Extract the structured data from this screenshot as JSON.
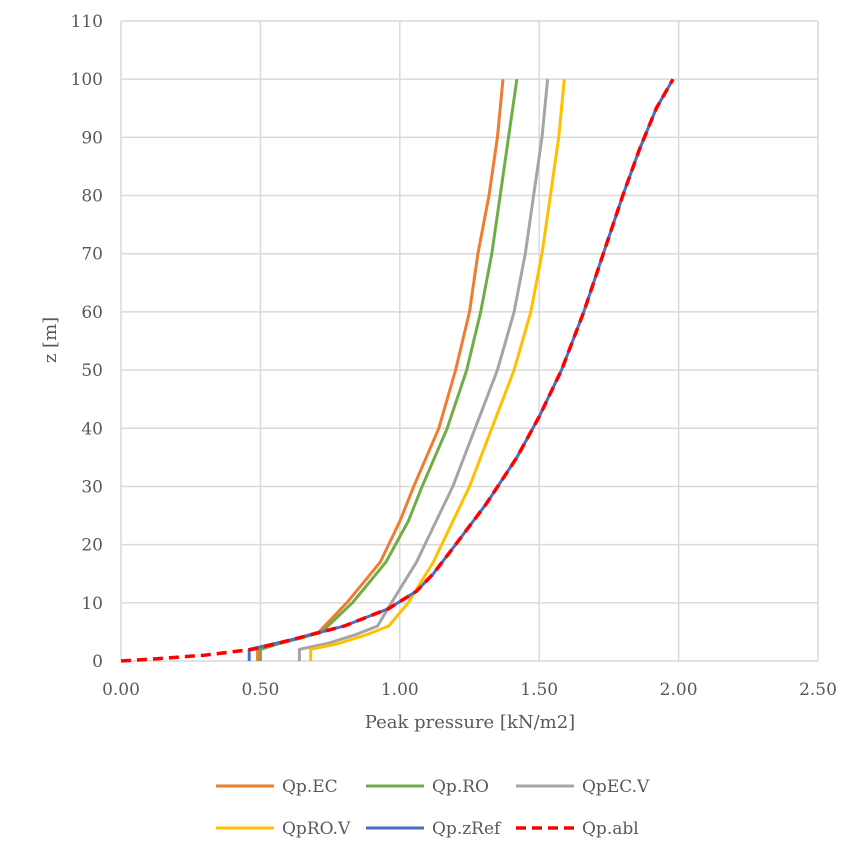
{
  "chart_data": {
    "type": "line",
    "title": "",
    "xlabel": "Peak pressure  [kN/m2]",
    "ylabel": "z [m]",
    "xlim": [
      0,
      2.5
    ],
    "ylim": [
      0,
      110
    ],
    "x_ticks": [
      "0.00",
      "0.50",
      "1.00",
      "1.50",
      "2.00",
      "2.50"
    ],
    "y_ticks": [
      "0",
      "10",
      "20",
      "30",
      "40",
      "50",
      "60",
      "70",
      "80",
      "90",
      "100",
      "110"
    ],
    "grid": true,
    "legend_position": "bottom",
    "series": [
      {
        "name": "Qp.EC",
        "color": "#ed7d31",
        "dash": false,
        "points": [
          [
            0.49,
            0
          ],
          [
            0.49,
            2
          ],
          [
            0.56,
            3
          ],
          [
            0.64,
            4
          ],
          [
            0.71,
            5
          ],
          [
            0.81,
            10
          ],
          [
            0.93,
            17
          ],
          [
            1.0,
            24
          ],
          [
            1.05,
            30
          ],
          [
            1.14,
            40
          ],
          [
            1.2,
            50
          ],
          [
            1.25,
            60
          ],
          [
            1.28,
            70
          ],
          [
            1.32,
            80
          ],
          [
            1.35,
            90
          ],
          [
            1.37,
            100
          ]
        ]
      },
      {
        "name": "Qp.RO",
        "color": "#70ad47",
        "dash": false,
        "points": [
          [
            0.5,
            0
          ],
          [
            0.5,
            2
          ],
          [
            0.57,
            3
          ],
          [
            0.65,
            4
          ],
          [
            0.72,
            5
          ],
          [
            0.83,
            10
          ],
          [
            0.95,
            17
          ],
          [
            1.03,
            24
          ],
          [
            1.08,
            30
          ],
          [
            1.17,
            40
          ],
          [
            1.24,
            50
          ],
          [
            1.29,
            60
          ],
          [
            1.33,
            70
          ],
          [
            1.36,
            80
          ],
          [
            1.39,
            90
          ],
          [
            1.42,
            100
          ]
        ]
      },
      {
        "name": "QpEC.V",
        "color": "#a5a5a5",
        "dash": false,
        "points": [
          [
            0.64,
            0
          ],
          [
            0.64,
            2
          ],
          [
            0.74,
            3
          ],
          [
            0.84,
            4.5
          ],
          [
            0.92,
            6
          ],
          [
            0.97,
            10
          ],
          [
            1.06,
            17
          ],
          [
            1.13,
            24
          ],
          [
            1.19,
            30
          ],
          [
            1.27,
            40
          ],
          [
            1.35,
            50
          ],
          [
            1.41,
            60
          ],
          [
            1.45,
            70
          ],
          [
            1.48,
            80
          ],
          [
            1.51,
            90
          ],
          [
            1.53,
            100
          ]
        ]
      },
      {
        "name": "QpRO.V",
        "color": "#ffc000",
        "dash": false,
        "points": [
          [
            0.68,
            0
          ],
          [
            0.68,
            2
          ],
          [
            0.78,
            3
          ],
          [
            0.88,
            4.5
          ],
          [
            0.96,
            6
          ],
          [
            1.03,
            10
          ],
          [
            1.12,
            17
          ],
          [
            1.19,
            24
          ],
          [
            1.25,
            30
          ],
          [
            1.33,
            40
          ],
          [
            1.41,
            50
          ],
          [
            1.47,
            60
          ],
          [
            1.51,
            70
          ],
          [
            1.54,
            80
          ],
          [
            1.57,
            90
          ],
          [
            1.59,
            100
          ]
        ]
      },
      {
        "name": "Qp.zRef",
        "color": "#4472c4",
        "dash": false,
        "points": [
          [
            0.46,
            0
          ],
          [
            0.46,
            2
          ],
          [
            0.6,
            3.5
          ],
          [
            0.8,
            6
          ],
          [
            0.96,
            9
          ],
          [
            1.06,
            12
          ],
          [
            1.12,
            15
          ],
          [
            1.2,
            20
          ],
          [
            1.31,
            27
          ],
          [
            1.42,
            35
          ],
          [
            1.5,
            42
          ],
          [
            1.58,
            50
          ],
          [
            1.66,
            60
          ],
          [
            1.73,
            70
          ],
          [
            1.8,
            80
          ],
          [
            1.86,
            88
          ],
          [
            1.92,
            95
          ],
          [
            1.98,
            100
          ]
        ]
      },
      {
        "name": "Qp.abl",
        "color": "#ff0000",
        "dash": true,
        "points": [
          [
            0.0,
            0
          ],
          [
            0.13,
            0.4
          ],
          [
            0.3,
            1.0
          ],
          [
            0.47,
            2.0
          ],
          [
            0.6,
            3.5
          ],
          [
            0.8,
            6
          ],
          [
            0.96,
            9
          ],
          [
            1.06,
            12
          ],
          [
            1.12,
            15
          ],
          [
            1.2,
            20
          ],
          [
            1.31,
            27
          ],
          [
            1.42,
            35
          ],
          [
            1.5,
            42
          ],
          [
            1.58,
            50
          ],
          [
            1.66,
            60
          ],
          [
            1.73,
            70
          ],
          [
            1.8,
            80
          ],
          [
            1.86,
            88
          ],
          [
            1.92,
            95
          ],
          [
            1.98,
            100
          ]
        ]
      }
    ]
  }
}
